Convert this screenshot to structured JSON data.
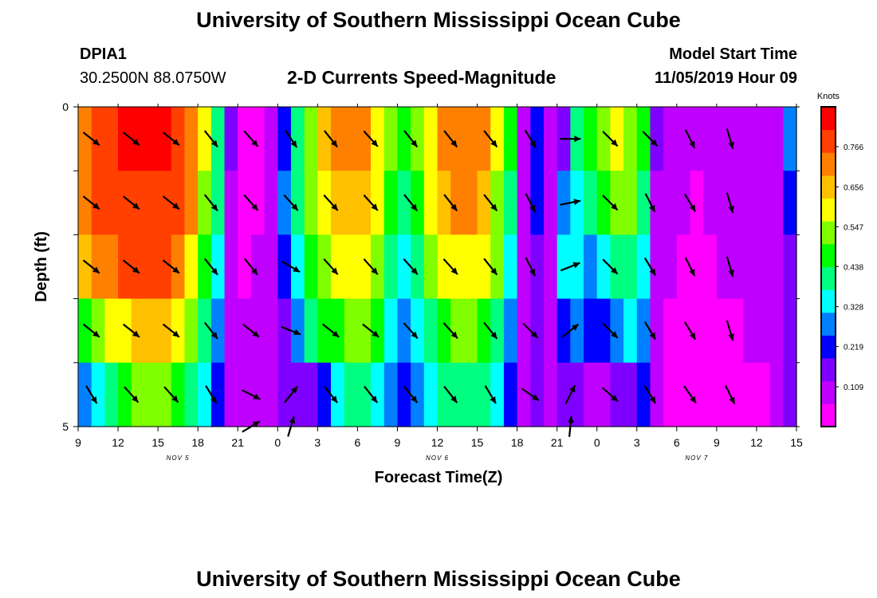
{
  "header": {
    "title_top": "University of Southern Mississippi Ocean Cube",
    "title_bottom": "University of Southern Mississippi Ocean Cube",
    "station": "DPIA1",
    "coords": "30.2500N 88.0750W",
    "subtitle": "2-D Currents Speed-Magnitude",
    "model_label": "Model Start Time",
    "model_time": "11/05/2019 Hour 09"
  },
  "colors": {
    "palette": [
      "#ff00ff",
      "#c000ff",
      "#8000ff",
      "#0000ff",
      "#0080ff",
      "#00ffff",
      "#00ff80",
      "#00ff00",
      "#80ff00",
      "#ffff00",
      "#ffc000",
      "#ff8000",
      "#ff4000",
      "#ff0000"
    ],
    "arrow": "#000000",
    "frame": "#000000"
  },
  "chart_data": {
    "type": "heatmap",
    "title": "2-D Currents Speed-Magnitude",
    "xlabel": "Forecast Time(Z)",
    "ylabel": "Depth (ft)",
    "x_ticks": [
      "9",
      "12",
      "15",
      "18",
      "21",
      "0",
      "3",
      "6",
      "9",
      "12",
      "15",
      "18",
      "21",
      "0",
      "3",
      "6",
      "9",
      "12",
      "15"
    ],
    "date_labels": [
      {
        "label": "NOV 5",
        "at_tick": 2.5
      },
      {
        "label": "NOV 6",
        "at_tick": 9
      },
      {
        "label": "NOV 7",
        "at_tick": 15.5
      }
    ],
    "y_range": [
      0,
      5
    ],
    "y_tick_labels": [
      "0",
      "5"
    ],
    "depth_rows": 5,
    "x_start_hour": 9,
    "x_end_hour": 63,
    "colorbar": {
      "unit": "Knots",
      "min": 0,
      "max": 0.875,
      "ticks": [
        "0.766",
        "0.656",
        "0.547",
        "0.438",
        "0.328",
        "0.219",
        "0.109"
      ],
      "tick_values": [
        0.766,
        0.656,
        0.547,
        0.438,
        0.328,
        0.219,
        0.109
      ]
    },
    "columns": [
      {
        "hour": 9,
        "speeds": [
          0.72,
          0.7,
          0.64,
          0.46,
          0.3
        ]
      },
      {
        "hour": 10,
        "speeds": [
          0.76,
          0.75,
          0.7,
          0.52,
          0.36
        ]
      },
      {
        "hour": 11,
        "speeds": [
          0.8,
          0.8,
          0.74,
          0.58,
          0.42
        ]
      },
      {
        "hour": 12,
        "speeds": [
          0.82,
          0.8,
          0.75,
          0.6,
          0.46
        ]
      },
      {
        "hour": 13,
        "speeds": [
          0.82,
          0.8,
          0.76,
          0.64,
          0.5
        ]
      },
      {
        "hour": 14,
        "speeds": [
          0.82,
          0.8,
          0.76,
          0.65,
          0.5
        ]
      },
      {
        "hour": 15,
        "speeds": [
          0.82,
          0.78,
          0.75,
          0.65,
          0.5
        ]
      },
      {
        "hour": 16,
        "speeds": [
          0.8,
          0.76,
          0.72,
          0.62,
          0.46
        ]
      },
      {
        "hour": 17,
        "speeds": [
          0.74,
          0.7,
          0.62,
          0.52,
          0.4
        ]
      },
      {
        "hour": 18,
        "speeds": [
          0.6,
          0.55,
          0.48,
          0.42,
          0.32
        ]
      },
      {
        "hour": 19,
        "speeds": [
          0.42,
          0.38,
          0.34,
          0.3,
          0.22
        ]
      },
      {
        "hour": 20,
        "speeds": [
          0.15,
          0.12,
          0.12,
          0.12,
          0.1
        ]
      },
      {
        "hour": 21,
        "speeds": [
          0.05,
          0.05,
          0.06,
          0.08,
          0.07
        ]
      },
      {
        "hour": 22,
        "speeds": [
          0.05,
          0.05,
          0.07,
          0.1,
          0.09
        ]
      },
      {
        "hour": 23,
        "speeds": [
          0.1,
          0.1,
          0.12,
          0.12,
          0.1
        ]
      },
      {
        "hour": 24,
        "speeds": [
          0.2,
          0.25,
          0.2,
          0.17,
          0.14
        ]
      },
      {
        "hour": 25,
        "speeds": [
          0.4,
          0.38,
          0.33,
          0.28,
          0.17
        ]
      },
      {
        "hour": 26,
        "speeds": [
          0.55,
          0.52,
          0.45,
          0.38,
          0.18
        ]
      },
      {
        "hour": 27,
        "speeds": [
          0.66,
          0.6,
          0.52,
          0.45,
          0.22
        ]
      },
      {
        "hour": 28,
        "speeds": [
          0.7,
          0.66,
          0.58,
          0.48,
          0.33
        ]
      },
      {
        "hour": 29,
        "speeds": [
          0.72,
          0.68,
          0.62,
          0.52,
          0.4
        ]
      },
      {
        "hour": 30,
        "speeds": [
          0.7,
          0.66,
          0.6,
          0.5,
          0.4
        ]
      },
      {
        "hour": 31,
        "speeds": [
          0.62,
          0.58,
          0.52,
          0.44,
          0.36
        ]
      },
      {
        "hour": 32,
        "speeds": [
          0.5,
          0.46,
          0.4,
          0.36,
          0.3
        ]
      },
      {
        "hour": 33,
        "speeds": [
          0.44,
          0.4,
          0.35,
          0.3,
          0.22
        ]
      },
      {
        "hour": 34,
        "speeds": [
          0.5,
          0.46,
          0.4,
          0.34,
          0.3
        ]
      },
      {
        "hour": 35,
        "speeds": [
          0.62,
          0.58,
          0.5,
          0.42,
          0.36
        ]
      },
      {
        "hour": 36,
        "speeds": [
          0.7,
          0.66,
          0.58,
          0.48,
          0.4
        ]
      },
      {
        "hour": 37,
        "speeds": [
          0.74,
          0.7,
          0.62,
          0.52,
          0.42
        ]
      },
      {
        "hour": 38,
        "speeds": [
          0.74,
          0.7,
          0.62,
          0.52,
          0.42
        ]
      },
      {
        "hour": 39,
        "speeds": [
          0.7,
          0.66,
          0.58,
          0.48,
          0.38
        ]
      },
      {
        "hour": 40,
        "speeds": [
          0.6,
          0.56,
          0.5,
          0.42,
          0.32
        ]
      },
      {
        "hour": 41,
        "speeds": [
          0.44,
          0.4,
          0.34,
          0.28,
          0.2
        ]
      },
      {
        "hour": 42,
        "speeds": [
          0.12,
          0.12,
          0.12,
          0.12,
          0.1
        ]
      },
      {
        "hour": 43,
        "speeds": [
          0.2,
          0.2,
          0.17,
          0.16,
          0.15
        ]
      },
      {
        "hour": 44,
        "speeds": [
          0.12,
          0.1,
          0.12,
          0.12,
          0.08
        ]
      },
      {
        "hour": 45,
        "speeds": [
          0.16,
          0.3,
          0.32,
          0.24,
          0.14
        ]
      },
      {
        "hour": 46,
        "speeds": [
          0.38,
          0.36,
          0.32,
          0.26,
          0.15
        ]
      },
      {
        "hour": 47,
        "speeds": [
          0.44,
          0.38,
          0.3,
          0.22,
          0.1
        ]
      },
      {
        "hour": 48,
        "speeds": [
          0.5,
          0.44,
          0.34,
          0.24,
          0.12
        ]
      },
      {
        "hour": 49,
        "speeds": [
          0.58,
          0.52,
          0.4,
          0.3,
          0.14
        ]
      },
      {
        "hour": 50,
        "speeds": [
          0.56,
          0.5,
          0.42,
          0.34,
          0.18
        ]
      },
      {
        "hour": 51,
        "speeds": [
          0.46,
          0.4,
          0.34,
          0.28,
          0.22
        ]
      },
      {
        "hour": 52,
        "speeds": [
          0.15,
          0.12,
          0.12,
          0.1,
          0.1
        ]
      },
      {
        "hour": 53,
        "speeds": [
          0.1,
          0.08,
          0.08,
          0.06,
          0.05
        ]
      },
      {
        "hour": 54,
        "speeds": [
          0.08,
          0.07,
          0.06,
          0.05,
          0.05
        ]
      },
      {
        "hour": 55,
        "speeds": [
          0.08,
          0.06,
          0.05,
          0.05,
          0.05
        ]
      },
      {
        "hour": 56,
        "speeds": [
          0.09,
          0.07,
          0.06,
          0.05,
          0.04
        ]
      },
      {
        "hour": 57,
        "speeds": [
          0.1,
          0.08,
          0.07,
          0.06,
          0.05
        ]
      },
      {
        "hour": 58,
        "speeds": [
          0.1,
          0.08,
          0.08,
          0.06,
          0.05
        ]
      },
      {
        "hour": 59,
        "speeds": [
          0.1,
          0.08,
          0.08,
          0.07,
          0.06
        ]
      },
      {
        "hour": 60,
        "speeds": [
          0.1,
          0.09,
          0.08,
          0.07,
          0.06
        ]
      },
      {
        "hour": 61,
        "speeds": [
          0.1,
          0.09,
          0.08,
          0.07,
          0.08
        ]
      },
      {
        "hour": 62,
        "speeds": [
          0.3,
          0.22,
          0.18,
          0.15,
          0.14
        ]
      }
    ],
    "arrows": [
      {
        "hour": 10,
        "row": 0.5,
        "dx": 1,
        "dy": 0.8
      },
      {
        "hour": 13,
        "row": 0.5,
        "dx": 1,
        "dy": 0.8
      },
      {
        "hour": 16,
        "row": 0.5,
        "dx": 1,
        "dy": 0.8
      },
      {
        "hour": 19,
        "row": 0.5,
        "dx": 0.8,
        "dy": 1
      },
      {
        "hour": 22,
        "row": 0.5,
        "dx": 0.8,
        "dy": 0.9
      },
      {
        "hour": 25,
        "row": 0.5,
        "dx": 0.6,
        "dy": 0.9
      },
      {
        "hour": 28,
        "row": 0.5,
        "dx": 0.8,
        "dy": 1
      },
      {
        "hour": 31,
        "row": 0.5,
        "dx": 0.9,
        "dy": 1
      },
      {
        "hour": 34,
        "row": 0.5,
        "dx": 0.8,
        "dy": 1
      },
      {
        "hour": 37,
        "row": 0.5,
        "dx": 0.8,
        "dy": 1
      },
      {
        "hour": 40,
        "row": 0.5,
        "dx": 0.8,
        "dy": 1
      },
      {
        "hour": 43,
        "row": 0.5,
        "dx": 0.6,
        "dy": 1
      },
      {
        "hour": 46,
        "row": 0.5,
        "dx": 1,
        "dy": 0
      },
      {
        "hour": 49,
        "row": 0.5,
        "dx": 0.8,
        "dy": 0.8
      },
      {
        "hour": 52,
        "row": 0.5,
        "dx": 0.8,
        "dy": 0.8
      },
      {
        "hour": 55,
        "row": 0.5,
        "dx": 0.5,
        "dy": 1
      },
      {
        "hour": 58,
        "row": 0.5,
        "dx": 0.3,
        "dy": 1
      },
      {
        "hour": 10,
        "row": 1.5,
        "dx": 1,
        "dy": 0.8
      },
      {
        "hour": 13,
        "row": 1.5,
        "dx": 1,
        "dy": 0.8
      },
      {
        "hour": 16,
        "row": 1.5,
        "dx": 1,
        "dy": 0.8
      },
      {
        "hour": 19,
        "row": 1.5,
        "dx": 0.8,
        "dy": 1
      },
      {
        "hour": 22,
        "row": 1.5,
        "dx": 0.8,
        "dy": 0.9
      },
      {
        "hour": 25,
        "row": 1.5,
        "dx": 0.9,
        "dy": 1
      },
      {
        "hour": 28,
        "row": 1.5,
        "dx": 0.9,
        "dy": 1
      },
      {
        "hour": 31,
        "row": 1.5,
        "dx": 0.9,
        "dy": 1
      },
      {
        "hour": 34,
        "row": 1.5,
        "dx": 0.8,
        "dy": 1
      },
      {
        "hour": 37,
        "row": 1.5,
        "dx": 0.8,
        "dy": 1
      },
      {
        "hour": 40,
        "row": 1.5,
        "dx": 0.8,
        "dy": 1
      },
      {
        "hour": 43,
        "row": 1.5,
        "dx": 0.5,
        "dy": 1
      },
      {
        "hour": 46,
        "row": 1.5,
        "dx": 1,
        "dy": -0.2
      },
      {
        "hour": 49,
        "row": 1.5,
        "dx": 0.8,
        "dy": 0.8
      },
      {
        "hour": 52,
        "row": 1.5,
        "dx": 0.5,
        "dy": 1
      },
      {
        "hour": 55,
        "row": 1.5,
        "dx": 0.6,
        "dy": 1
      },
      {
        "hour": 58,
        "row": 1.5,
        "dx": 0.3,
        "dy": 1
      },
      {
        "hour": 10,
        "row": 2.5,
        "dx": 1,
        "dy": 0.8
      },
      {
        "hour": 13,
        "row": 2.5,
        "dx": 1,
        "dy": 0.8
      },
      {
        "hour": 16,
        "row": 2.5,
        "dx": 1,
        "dy": 0.8
      },
      {
        "hour": 19,
        "row": 2.5,
        "dx": 0.8,
        "dy": 1
      },
      {
        "hour": 22,
        "row": 2.5,
        "dx": 0.8,
        "dy": 1
      },
      {
        "hour": 25,
        "row": 2.5,
        "dx": 1,
        "dy": 0.6
      },
      {
        "hour": 28,
        "row": 2.5,
        "dx": 0.9,
        "dy": 1
      },
      {
        "hour": 31,
        "row": 2.5,
        "dx": 0.9,
        "dy": 1
      },
      {
        "hour": 34,
        "row": 2.5,
        "dx": 0.9,
        "dy": 1
      },
      {
        "hour": 37,
        "row": 2.5,
        "dx": 0.9,
        "dy": 1
      },
      {
        "hour": 40,
        "row": 2.5,
        "dx": 0.8,
        "dy": 1
      },
      {
        "hour": 43,
        "row": 2.5,
        "dx": 0.5,
        "dy": 1
      },
      {
        "hour": 46,
        "row": 2.5,
        "dx": 1,
        "dy": -0.4
      },
      {
        "hour": 49,
        "row": 2.5,
        "dx": 0.8,
        "dy": 0.8
      },
      {
        "hour": 52,
        "row": 2.5,
        "dx": 0.6,
        "dy": 1
      },
      {
        "hour": 55,
        "row": 2.5,
        "dx": 0.5,
        "dy": 1
      },
      {
        "hour": 58,
        "row": 2.5,
        "dx": 0.3,
        "dy": 1
      },
      {
        "hour": 10,
        "row": 3.5,
        "dx": 1,
        "dy": 0.8
      },
      {
        "hour": 13,
        "row": 3.5,
        "dx": 1,
        "dy": 0.8
      },
      {
        "hour": 16,
        "row": 3.5,
        "dx": 1,
        "dy": 0.8
      },
      {
        "hour": 19,
        "row": 3.5,
        "dx": 0.8,
        "dy": 1
      },
      {
        "hour": 22,
        "row": 3.5,
        "dx": 1,
        "dy": 0.8
      },
      {
        "hour": 25,
        "row": 3.5,
        "dx": 1,
        "dy": 0.4
      },
      {
        "hour": 28,
        "row": 3.5,
        "dx": 1,
        "dy": 0.8
      },
      {
        "hour": 31,
        "row": 3.5,
        "dx": 1,
        "dy": 0.8
      },
      {
        "hour": 34,
        "row": 3.5,
        "dx": 0.9,
        "dy": 1
      },
      {
        "hour": 37,
        "row": 3.5,
        "dx": 0.9,
        "dy": 1
      },
      {
        "hour": 40,
        "row": 3.5,
        "dx": 0.8,
        "dy": 1
      },
      {
        "hour": 43,
        "row": 3.5,
        "dx": 0.8,
        "dy": 0.8
      },
      {
        "hour": 46,
        "row": 3.5,
        "dx": 1,
        "dy": -0.8
      },
      {
        "hour": 49,
        "row": 3.5,
        "dx": 0.8,
        "dy": 0.8
      },
      {
        "hour": 52,
        "row": 3.5,
        "dx": 0.6,
        "dy": 1
      },
      {
        "hour": 55,
        "row": 3.5,
        "dx": 0.6,
        "dy": 1
      },
      {
        "hour": 58,
        "row": 3.5,
        "dx": 0.3,
        "dy": 1
      },
      {
        "hour": 10,
        "row": 4.5,
        "dx": 0.6,
        "dy": 1
      },
      {
        "hour": 13,
        "row": 4.5,
        "dx": 0.9,
        "dy": 1
      },
      {
        "hour": 16,
        "row": 4.5,
        "dx": 0.9,
        "dy": 1
      },
      {
        "hour": 19,
        "row": 4.5,
        "dx": 0.6,
        "dy": 1
      },
      {
        "hour": 22,
        "row": 4.5,
        "dx": 1,
        "dy": 0.5
      },
      {
        "hour": 25,
        "row": 4.5,
        "dx": 0.8,
        "dy": -1
      },
      {
        "hour": 28,
        "row": 4.5,
        "dx": 0.8,
        "dy": 1
      },
      {
        "hour": 31,
        "row": 4.5,
        "dx": 0.8,
        "dy": 1
      },
      {
        "hour": 34,
        "row": 4.5,
        "dx": 0.8,
        "dy": 1
      },
      {
        "hour": 37,
        "row": 4.5,
        "dx": 0.8,
        "dy": 1
      },
      {
        "hour": 40,
        "row": 4.5,
        "dx": 0.6,
        "dy": 1
      },
      {
        "hour": 43,
        "row": 4.5,
        "dx": 1,
        "dy": 0.7
      },
      {
        "hour": 46,
        "row": 4.5,
        "dx": 0.5,
        "dy": -1
      },
      {
        "hour": 49,
        "row": 4.5,
        "dx": 0.9,
        "dy": 0.8
      },
      {
        "hour": 52,
        "row": 4.5,
        "dx": 0.6,
        "dy": 1
      },
      {
        "hour": 55,
        "row": 4.5,
        "dx": 0.7,
        "dy": 1
      },
      {
        "hour": 58,
        "row": 4.5,
        "dx": 0.5,
        "dy": 1
      },
      {
        "hour": 22,
        "row": 5.0,
        "dx": 1,
        "dy": -0.6
      },
      {
        "hour": 25,
        "row": 5.0,
        "dx": 0.3,
        "dy": -1
      },
      {
        "hour": 46,
        "row": 5.0,
        "dx": 0.1,
        "dy": -1
      }
    ]
  }
}
